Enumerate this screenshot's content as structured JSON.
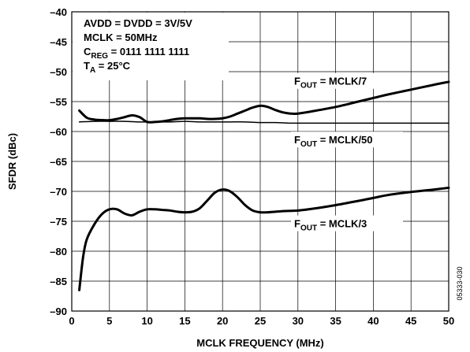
{
  "chart_data": {
    "type": "line",
    "xlabel": "MCLK FREQUENCY (MHz)",
    "ylabel": "SFDR (dBc)",
    "xlim": [
      0,
      50
    ],
    "ylim": [
      -90,
      -40
    ],
    "xticks": [
      0,
      5,
      10,
      15,
      20,
      25,
      30,
      35,
      40,
      45,
      50
    ],
    "yticks": [
      -40,
      -45,
      -50,
      -55,
      -60,
      -65,
      -70,
      -75,
      -80,
      -85,
      -90
    ],
    "grid": true,
    "conditions": [
      {
        "main": "AVDD = DVDD = 3V/5V",
        "sub": "",
        "tail": ""
      },
      {
        "main": "MCLK = 50MHz",
        "sub": "",
        "tail": ""
      },
      {
        "main": "C",
        "sub": "REG",
        "tail": " = 0111 1111 1111"
      },
      {
        "main": "T",
        "sub": "A",
        "tail": " = 25°C"
      }
    ],
    "series": [
      {
        "name": "FOUT = MCLK/7",
        "label_main": "F",
        "label_sub": "OUT",
        "label_tail": " = MCLK/7",
        "label_anchor": [
          29.5,
          -52.2
        ],
        "stroke_width": 3,
        "x": [
          1,
          2,
          3,
          4,
          5,
          6,
          7,
          8,
          9,
          10,
          11,
          12,
          13,
          14,
          15,
          16,
          17,
          18,
          19,
          20,
          21,
          22,
          23,
          24,
          25,
          26,
          27,
          28,
          29,
          30,
          32,
          35,
          38,
          40,
          42,
          45,
          48,
          50
        ],
        "y": [
          -56.5,
          -57.7,
          -58.0,
          -58.1,
          -58.1,
          -57.9,
          -57.6,
          -57.3,
          -57.6,
          -58.4,
          -58.4,
          -58.3,
          -58.1,
          -57.9,
          -57.8,
          -57.8,
          -57.8,
          -57.9,
          -57.9,
          -57.8,
          -57.5,
          -57.0,
          -56.5,
          -56.0,
          -55.7,
          -55.9,
          -56.4,
          -56.8,
          -57.0,
          -57.0,
          -56.6,
          -55.9,
          -55.0,
          -54.4,
          -53.8,
          -53.0,
          -52.2,
          -51.7
        ]
      },
      {
        "name": "FOUT = MCLK/50",
        "label_main": "F",
        "label_sub": "OUT",
        "label_tail": " = MCLK/50",
        "label_anchor": [
          29.5,
          -62.0
        ],
        "stroke_width": 1.5,
        "x": [
          1,
          3,
          5,
          7,
          9,
          11,
          13,
          15,
          17,
          19,
          21,
          23,
          25,
          27,
          29,
          31,
          33,
          35,
          40,
          45,
          50
        ],
        "y": [
          -58.4,
          -58.3,
          -58.3,
          -58.3,
          -58.4,
          -58.4,
          -58.4,
          -58.3,
          -58.4,
          -58.4,
          -58.4,
          -58.4,
          -58.5,
          -58.5,
          -58.6,
          -58.6,
          -58.6,
          -58.6,
          -58.6,
          -58.6,
          -58.6
        ]
      },
      {
        "name": "FOUT = MCLK/3",
        "label_main": "F",
        "label_sub": "OUT",
        "label_tail": " = MCLK/3",
        "label_anchor": [
          29.5,
          -76.0
        ],
        "stroke_width": 3,
        "x": [
          1,
          1.5,
          2,
          3,
          4,
          5,
          6,
          7,
          8,
          9,
          10,
          11,
          12,
          13,
          14,
          15,
          16,
          17,
          18,
          19,
          20,
          21,
          22,
          23,
          24,
          25,
          26,
          27,
          28,
          30,
          32,
          35,
          38,
          40,
          42,
          45,
          48,
          50
        ],
        "y": [
          -86.5,
          -81.0,
          -78.0,
          -75.5,
          -73.8,
          -73.0,
          -73.0,
          -73.7,
          -74.0,
          -73.4,
          -73.0,
          -73.0,
          -73.1,
          -73.2,
          -73.4,
          -73.5,
          -73.4,
          -72.8,
          -71.5,
          -70.2,
          -69.7,
          -70.0,
          -71.0,
          -72.3,
          -73.2,
          -73.5,
          -73.5,
          -73.4,
          -73.3,
          -73.2,
          -72.9,
          -72.3,
          -71.6,
          -71.1,
          -70.6,
          -70.1,
          -69.7,
          -69.4
        ]
      }
    ],
    "figure_id": "05333-030"
  }
}
